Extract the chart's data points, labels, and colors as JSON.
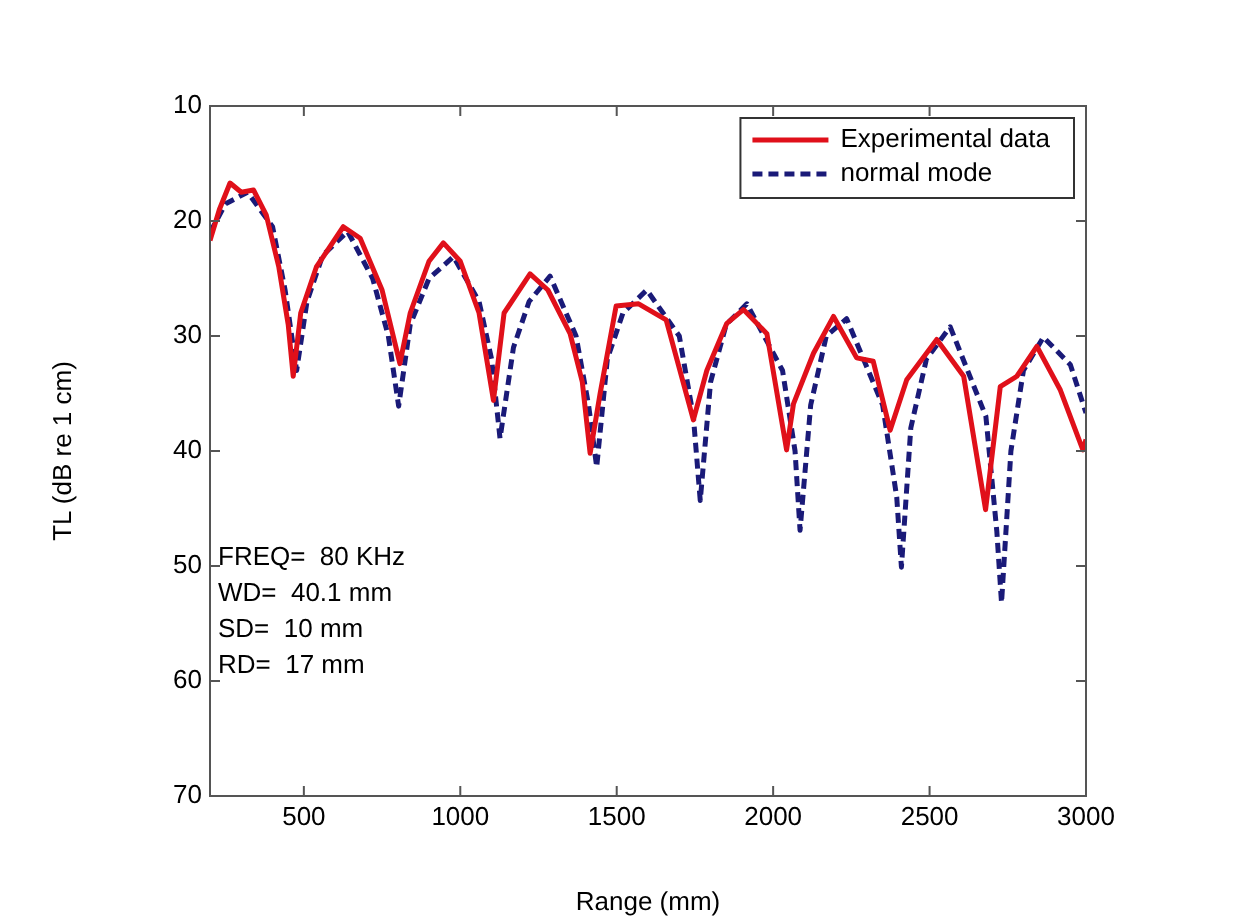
{
  "chart_data": {
    "type": "line",
    "xlabel": "Range (mm)",
    "ylabel": "TL (dB re 1 cm)",
    "xlim": [
      200,
      3000
    ],
    "xticks": [
      500,
      1000,
      1500,
      2000,
      2500,
      3000
    ],
    "ylim": [
      70,
      10
    ],
    "yticks": [
      10,
      20,
      30,
      40,
      50,
      60,
      70
    ],
    "grid": false,
    "legend": "top right",
    "marker": "none",
    "annotations": [
      "FREQ=  80 KHz",
      "WD=  40.1 mm",
      "SD=  10 mm",
      "RD=  17 mm"
    ],
    "series": [
      {
        "name": "Experimental data",
        "color": "#e0101a",
        "line_style": "solid",
        "x": [
          200,
          230,
          264,
          300,
          339,
          380,
          420,
          450,
          466,
          490,
          540,
          626,
          680,
          750,
          807,
          840,
          900,
          946,
          1000,
          1060,
          1106,
          1140,
          1223,
          1280,
          1351,
          1390,
          1415,
          1447,
          1498,
          1570,
          1658,
          1745,
          1788,
          1852,
          1905,
          1980,
          2043,
          2065,
          2129,
          2193,
          2267,
          2320,
          2374,
          2427,
          2523,
          2609,
          2679,
          2726,
          2779,
          2843,
          2918,
          2990,
          3000
        ],
        "values": [
          21.7,
          19,
          16.7,
          17.5,
          17.3,
          19.5,
          24,
          29,
          33.5,
          28,
          24,
          20.5,
          21.5,
          26,
          32.4,
          28,
          23.5,
          21.9,
          23.5,
          28,
          35.6,
          28,
          24.6,
          26,
          29.8,
          34,
          40.2,
          35,
          27.4,
          27.2,
          28.6,
          37.3,
          33,
          28.9,
          27.7,
          29.8,
          39.9,
          35.9,
          31.5,
          28.3,
          31.9,
          32.2,
          38.2,
          33.8,
          30.3,
          33.5,
          45.1,
          34.4,
          33.5,
          30.9,
          34.7,
          39.9,
          39
        ]
      },
      {
        "name": "normal mode",
        "color": "#1a1a78",
        "line_style": "dashed",
        "x": [
          200,
          250,
          320,
          400,
          440,
          477,
          510,
          560,
          640,
          720,
          770,
          803,
          840,
          900,
          978,
          1060,
          1100,
          1127,
          1170,
          1220,
          1287,
          1370,
          1410,
          1436,
          1470,
          1520,
          1596,
          1700,
          1745,
          1767,
          1800,
          1850,
          1916,
          2030,
          2070,
          2086,
          2120,
          2170,
          2235,
          2350,
          2395,
          2410,
          2440,
          2490,
          2566,
          2680,
          2715,
          2730,
          2760,
          2800,
          2864,
          2950,
          3000
        ],
        "values": [
          21,
          18.5,
          17.5,
          20.5,
          26,
          33,
          27,
          23,
          20.9,
          25,
          30,
          36.1,
          29,
          25,
          23.1,
          27,
          32,
          38.9,
          31,
          27,
          24.8,
          30,
          36,
          41.4,
          32,
          28,
          26,
          30,
          37,
          44.3,
          34,
          29,
          27.2,
          33,
          40,
          46.9,
          36,
          30,
          28.5,
          36,
          44,
          50.1,
          38,
          32,
          29.2,
          37,
          47,
          53.2,
          40,
          33,
          30.1,
          32.5,
          36.7
        ]
      }
    ]
  }
}
